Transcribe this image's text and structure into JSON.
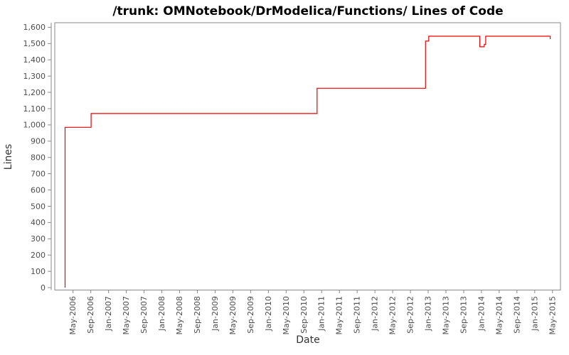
{
  "window": {
    "background": "#ffffff"
  },
  "chart_data": {
    "type": "line",
    "subtype": "step",
    "title": "/trunk: OMNotebook/DrModelica/Functions/ Lines of Code",
    "xlabel": "Date",
    "ylabel": "Lines",
    "grid": false,
    "legend": false,
    "line_color": "#ee0000",
    "frame_color": "#8a8a8a",
    "tick_color": "#8a8a8a",
    "tick_label_color": "#4d4d4d",
    "axis_title_color": "#333333",
    "title_color": "#000000",
    "ylim": [
      0,
      1600
    ],
    "y_tick_step": 100,
    "y_tick_labels": [
      "0",
      "100",
      "200",
      "300",
      "400",
      "500",
      "600",
      "700",
      "800",
      "900",
      "1,000",
      "1,100",
      "1,200",
      "1,300",
      "1,400",
      "1,500",
      "1,600"
    ],
    "x_tick_labels": [
      "May-2006",
      "Sep-2006",
      "Jan-2007",
      "May-2007",
      "Sep-2007",
      "Jan-2008",
      "May-2008",
      "Sep-2008",
      "Jan-2009",
      "May-2009",
      "Sep-2009",
      "Jan-2010",
      "May-2010",
      "Sep-2010",
      "Jan-2011",
      "May-2011",
      "Sep-2011",
      "Jan-2012",
      "May-2012",
      "Sep-2012",
      "Jan-2013",
      "May-2013",
      "Sep-2013",
      "Jan-2014",
      "May-2014",
      "Sep-2014",
      "Jan-2015",
      "May-2015"
    ],
    "series": [
      {
        "name": "lines-of-code",
        "points": [
          [
            "2006-03-22",
            0
          ],
          [
            "2006-03-22",
            985
          ],
          [
            "2006-09-18",
            985
          ],
          [
            "2006-09-18",
            1070
          ],
          [
            "2010-12-15",
            1070
          ],
          [
            "2010-12-15",
            1225
          ],
          [
            "2012-12-28",
            1225
          ],
          [
            "2012-12-28",
            1515
          ],
          [
            "2013-01-20",
            1515
          ],
          [
            "2013-01-20",
            1545
          ],
          [
            "2014-01-05",
            1545
          ],
          [
            "2014-01-05",
            1480
          ],
          [
            "2014-02-05",
            1480
          ],
          [
            "2014-02-05",
            1495
          ],
          [
            "2014-02-15",
            1495
          ],
          [
            "2014-02-15",
            1545
          ],
          [
            "2015-05-01",
            1545
          ]
        ]
      }
    ]
  }
}
